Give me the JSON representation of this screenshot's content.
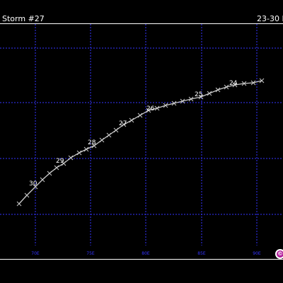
{
  "header": {
    "title": "Storm #27",
    "date_range": "23-30 M"
  },
  "map": {
    "grid_color": "#3333ff",
    "track_color": "#c8c8c8",
    "frame_color": "#ffffff",
    "lon_labels": [
      "70E",
      "75E",
      "80E",
      "85E",
      "90E"
    ],
    "day_labels": [
      "30",
      "29",
      "28",
      "27",
      "26",
      "25",
      "24"
    ]
  },
  "logo": {
    "icon": "copyright-logo-icon",
    "color": "#b01898"
  }
}
